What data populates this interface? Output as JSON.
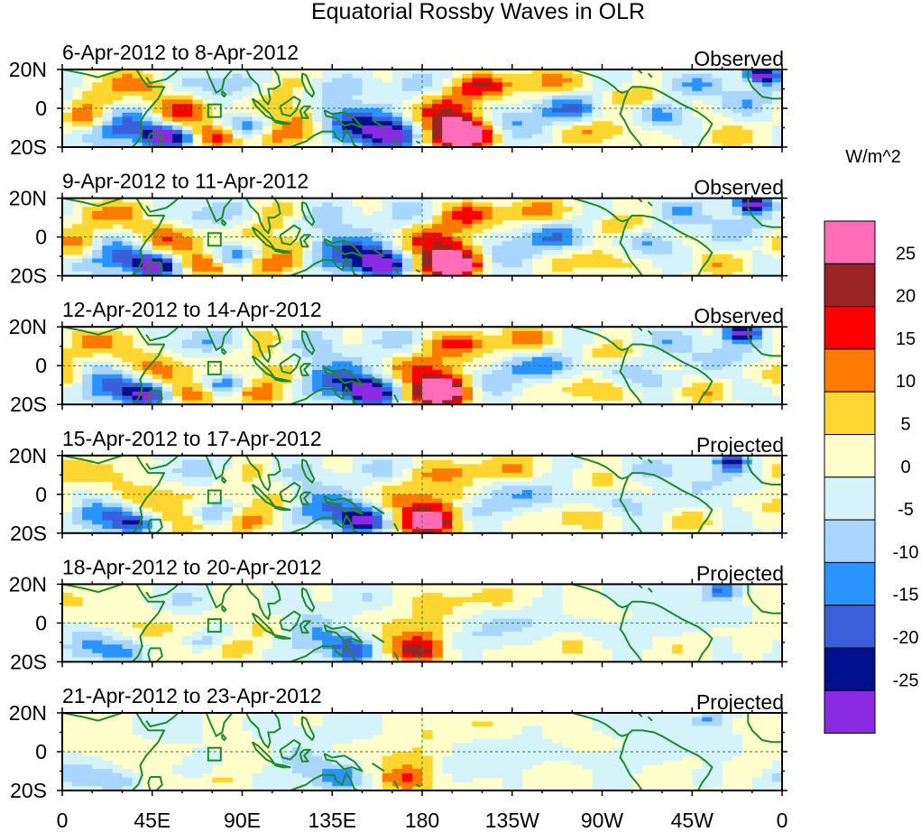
{
  "title": "Equatorial Rossby Waves in OLR",
  "units_label": "W/m^2",
  "lat_labels": [
    "20N",
    "0",
    "20S"
  ],
  "lon_labels": [
    "0",
    "45E",
    "90E",
    "135E",
    "180",
    "135W",
    "90W",
    "45W",
    "0"
  ],
  "panels": [
    {
      "dates": "6-Apr-2012 to 8-Apr-2012",
      "status": "Observed",
      "intensity": 1.0
    },
    {
      "dates": "9-Apr-2012 to 11-Apr-2012",
      "status": "Observed",
      "intensity": 0.95
    },
    {
      "dates": "12-Apr-2012 to 14-Apr-2012",
      "status": "Observed",
      "intensity": 0.9
    },
    {
      "dates": "15-Apr-2012 to 17-Apr-2012",
      "status": "Projected",
      "intensity": 0.72
    },
    {
      "dates": "18-Apr-2012 to 20-Apr-2012",
      "status": "Projected",
      "intensity": 0.48
    },
    {
      "dates": "21-Apr-2012 to 23-Apr-2012",
      "status": "Projected",
      "intensity": 0.34
    }
  ],
  "colorbar": {
    "labels": [
      "25",
      "20",
      "15",
      "10",
      "5",
      "0",
      "-5",
      "-10",
      "-15",
      "-20",
      "-25"
    ],
    "colors": [
      "#ff6cb8",
      "#9a2323",
      "#ff0000",
      "#ff7a00",
      "#ffd630",
      "#ffffcc",
      "#d4f4fa",
      "#a9d6ff",
      "#2a93ff",
      "#3b5fdb",
      "#000f8c",
      "#8a2be2"
    ]
  },
  "colors": {
    "coastline": "#1f8a2a",
    "frame": "#000000",
    "dashed": "#1f8a2a"
  }
}
